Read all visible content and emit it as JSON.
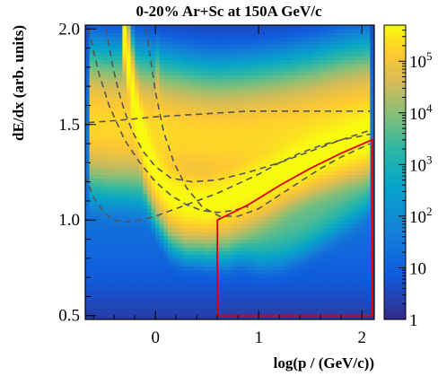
{
  "chart_data": {
    "type": "heatmap",
    "title": "0-20% Ar+Sc at 150A GeV/c",
    "xlabel": "log(p / (GeV/c))",
    "ylabel": "dE/dx (arb. units)",
    "xlim": [
      -0.68,
      2.12
    ],
    "ylim": [
      0.48,
      2.02
    ],
    "x_ticks": [
      "0",
      "1",
      "2"
    ],
    "x_tick_values": [
      0,
      1,
      2
    ],
    "y_ticks": [
      "0.5",
      "1.0",
      "1.5",
      "2.0"
    ],
    "y_tick_values": [
      0.5,
      1.0,
      1.5,
      2.0
    ],
    "colorbar": {
      "scale": "log",
      "range": [
        1,
        500000
      ],
      "ticks": [
        {
          "value": 1,
          "label": "1"
        },
        {
          "value": 10,
          "label": "10"
        },
        {
          "value": 100,
          "label": "10^2"
        },
        {
          "value": 1000,
          "label": "10^3"
        },
        {
          "value": 10000,
          "label": "10^4"
        },
        {
          "value": 100000,
          "label": "10^5"
        }
      ]
    },
    "bands": [
      {
        "x": [
          -0.65,
          -0.45,
          -0.3,
          -0.15,
          0.0,
          0.2,
          0.4,
          0.6,
          0.9,
          1.2,
          1.5,
          1.8,
          2.1
        ],
        "y": [
          1.52,
          1.5,
          1.5,
          1.49,
          1.47,
          1.45,
          1.43,
          1.42,
          1.43,
          1.45,
          1.48,
          1.52,
          1.55
        ],
        "peak": 5.3,
        "w": 0.11
      },
      {
        "x": [
          -0.3,
          -0.2,
          -0.1,
          0.0,
          0.15,
          0.3,
          0.5,
          0.7,
          0.9,
          1.1,
          1.3,
          1.5,
          1.7,
          1.9,
          2.1
        ],
        "y": [
          1.95,
          1.6,
          1.38,
          1.25,
          1.13,
          1.09,
          1.09,
          1.12,
          1.17,
          1.22,
          1.28,
          1.33,
          1.37,
          1.41,
          1.44
        ],
        "peak": 5.7,
        "w": 0.075
      },
      {
        "x": [
          0.0,
          0.15,
          0.3,
          0.5,
          0.7,
          0.9,
          1.1,
          1.3,
          1.5,
          1.7,
          1.9,
          2.1
        ],
        "y": [
          1.7,
          1.32,
          1.15,
          1.05,
          1.03,
          1.07,
          1.13,
          1.2,
          1.26,
          1.31,
          1.36,
          1.4
        ],
        "peak": 4.6,
        "w": 0.075
      },
      {
        "x": [
          0.55,
          0.7,
          0.85,
          1.0,
          1.2,
          1.4,
          1.6,
          1.8,
          2.0,
          2.1
        ],
        "y": [
          1.3,
          1.1,
          1.0,
          0.96,
          0.97,
          1.01,
          1.07,
          1.14,
          1.21,
          1.26
        ],
        "peak": 3.6,
        "w": 0.07
      }
    ],
    "theory_curves": [
      {
        "name": "",
        "x": [
          -0.48,
          -0.42,
          -0.36,
          -0.3,
          -0.22,
          -0.12,
          0.0,
          0.15,
          0.35,
          0.6,
          0.9,
          1.2,
          1.5,
          1.8,
          2.08
        ],
        "y": [
          2.0,
          1.82,
          1.68,
          1.57,
          1.46,
          1.36,
          1.28,
          1.22,
          1.2,
          1.21,
          1.25,
          1.3,
          1.36,
          1.42,
          1.47
        ]
      },
      {
        "name": "",
        "x": [
          -0.09,
          0.0,
          0.08,
          0.18,
          0.3,
          0.45,
          0.62,
          0.8,
          1.0,
          1.2,
          1.4,
          1.6,
          1.8,
          2.0,
          2.08
        ],
        "y": [
          2.0,
          1.67,
          1.46,
          1.3,
          1.17,
          1.07,
          1.02,
          1.02,
          1.06,
          1.13,
          1.2,
          1.27,
          1.33,
          1.38,
          1.4
        ]
      },
      {
        "name": "",
        "x": [
          -0.65,
          -0.55,
          -0.45,
          -0.3,
          -0.15,
          0.0,
          0.15,
          0.3,
          0.45,
          0.6,
          0.75,
          0.9
        ],
        "y": [
          2.0,
          1.77,
          1.6,
          1.42,
          1.3,
          1.2,
          1.13,
          1.08,
          1.05,
          1.04,
          1.05,
          1.07
        ]
      },
      {
        "name": "",
        "x": [
          -0.68,
          -0.6,
          -0.5,
          -0.4,
          -0.3,
          -0.15,
          0.0,
          0.2,
          0.4,
          0.6,
          0.8,
          1.0,
          1.2,
          1.4,
          1.6,
          1.8,
          2.0,
          2.08
        ],
        "y": [
          1.23,
          1.12,
          1.04,
          1.0,
          0.99,
          1.0,
          1.02,
          1.06,
          1.1,
          1.14,
          1.19,
          1.24,
          1.3,
          1.35,
          1.39,
          1.42,
          1.44,
          1.45
        ]
      },
      {
        "name": "",
        "x": [
          -0.65,
          -0.4,
          -0.2,
          0.0,
          0.3,
          0.6,
          0.9,
          1.2,
          1.5,
          1.8,
          2.08
        ],
        "y": [
          1.51,
          1.52,
          1.53,
          1.54,
          1.55,
          1.56,
          1.57,
          1.57,
          1.57,
          1.57,
          1.57
        ]
      }
    ],
    "selection_box": {
      "x": [
        0.6,
        0.6,
        0.9,
        1.2,
        1.5,
        1.8,
        2.1,
        2.1,
        0.6
      ],
      "y": [
        1.0,
        1.0,
        1.08,
        1.18,
        1.27,
        1.35,
        1.42,
        0.5,
        0.5
      ],
      "color": "#e00000"
    }
  }
}
